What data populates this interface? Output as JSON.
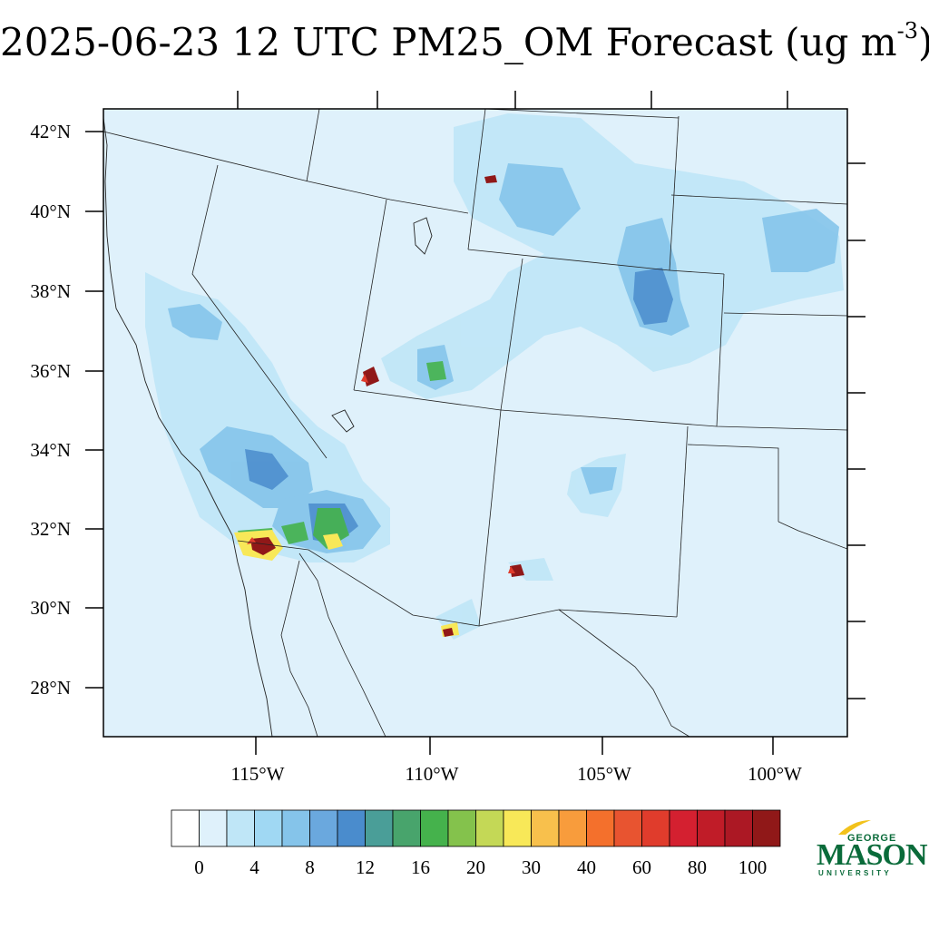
{
  "title": {
    "text": "2025-06-23 12 UTC PM25_OM Forecast (ug m",
    "sup": "-3",
    "close": ")"
  },
  "map": {
    "lat_labels": [
      "42°N",
      "40°N",
      "38°N",
      "36°N",
      "34°N",
      "32°N",
      "30°N",
      "28°N"
    ],
    "lon_labels": [
      "115°W",
      "110°W",
      "105°W",
      "100°W"
    ],
    "background_color": "#dff1fb",
    "hotspots": [
      {
        "name": "southern-california-baja-border",
        "level": 100
      },
      {
        "name": "southwest-utah",
        "level": 100
      },
      {
        "name": "southern-new-mexico",
        "level": 100
      },
      {
        "name": "northeast-utah-wyoming",
        "level": 100
      },
      {
        "name": "southwest-new-mexico-border",
        "level": 80
      }
    ]
  },
  "colorbar": {
    "colors": [
      "#ffffff",
      "#dff1fb",
      "#bfe6f7",
      "#a0d8f3",
      "#85c4ea",
      "#6aa8de",
      "#4a8ccd",
      "#4a9e98",
      "#48a46c",
      "#45b24c",
      "#84c24c",
      "#c4d856",
      "#f8e858",
      "#f8c04c",
      "#f89c3c",
      "#f4702c",
      "#e85430",
      "#e03c2c",
      "#d42030",
      "#c01c28",
      "#ac1824",
      "#901818"
    ],
    "labels": [
      "0",
      "4",
      "8",
      "12",
      "16",
      "20",
      "30",
      "40",
      "60",
      "80",
      "100"
    ]
  },
  "logo": {
    "line1": "GEORGE",
    "line2": "MASON",
    "line3": "UNIVERSITY"
  }
}
